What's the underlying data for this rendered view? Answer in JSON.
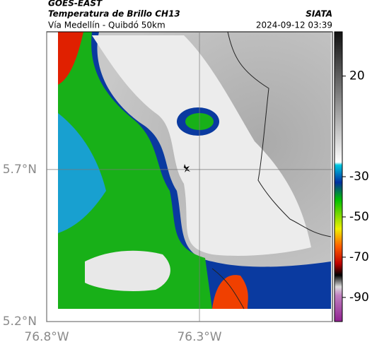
{
  "header": {
    "title": "GOES-EAST",
    "subtitle": "Temperatura de Brillo CH13",
    "source": "SIATA",
    "route": "Vía Medellín - Quibdó 50km",
    "timestamp": "2024-09-12 03:39"
  },
  "map": {
    "xlim": [
      -76.8,
      -75.865
    ],
    "ylim": [
      5.2,
      6.153
    ],
    "xticks": [
      {
        "value": -76.8,
        "label": "76.8°W"
      },
      {
        "value": -76.3,
        "label": "76.3°W"
      }
    ],
    "yticks": [
      {
        "value": 5.7,
        "label": "5.7°N"
      },
      {
        "value": 5.2,
        "label": "5.2°N"
      }
    ],
    "grid": true
  },
  "colorbar": {
    "lim": [
      42,
      -102
    ],
    "ticks": [
      20,
      -30,
      -50,
      -70,
      -90
    ]
  }
}
